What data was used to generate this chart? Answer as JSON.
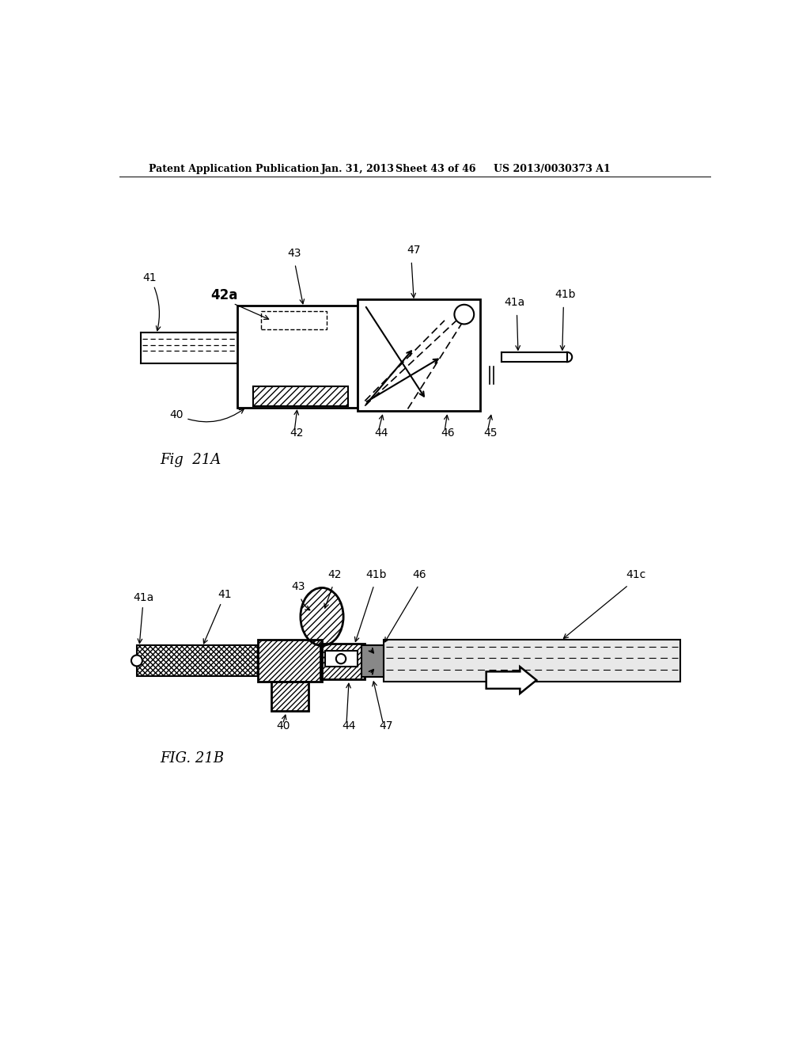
{
  "bg_color": "#ffffff",
  "header_text": "Patent Application Publication",
  "header_date": "Jan. 31, 2013",
  "header_sheet": "Sheet 43 of 46",
  "header_patent": "US 2013/0030373 A1",
  "fig21A_label": "Fig  21A",
  "fig21B_label": "FIG. 21B"
}
